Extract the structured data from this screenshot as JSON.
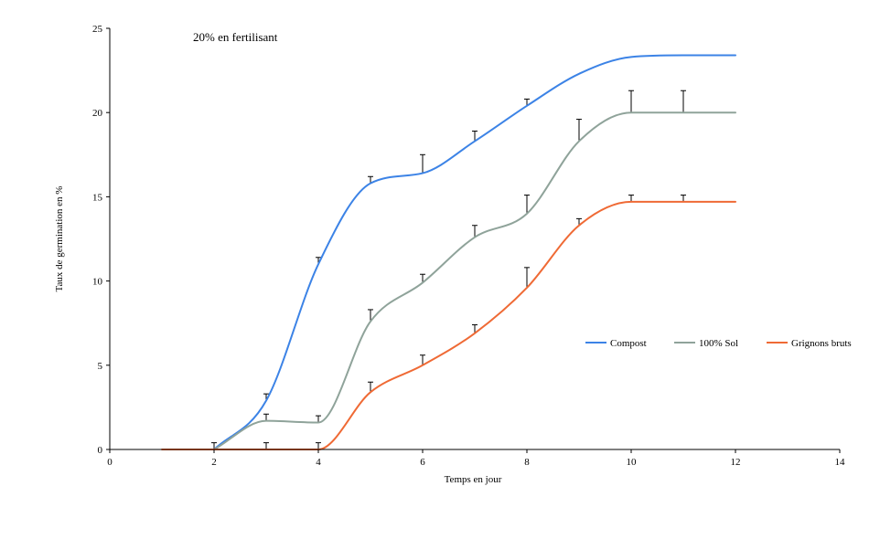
{
  "chart_data": {
    "type": "line",
    "title": "",
    "annotation": "20% en fertilisant",
    "xlabel": "Temps en jour",
    "ylabel": "Taux de germination en %",
    "xlim": [
      0,
      14
    ],
    "ylim": [
      0,
      25
    ],
    "xticks": [
      0,
      2,
      4,
      6,
      8,
      10,
      12,
      14
    ],
    "yticks": [
      0,
      5,
      10,
      15,
      20,
      25
    ],
    "grid": false,
    "legend_position": "right",
    "smooth": true,
    "series": [
      {
        "name": "Compost",
        "color": "#3c83e6",
        "x": [
          2,
          3,
          4,
          5,
          6,
          7,
          8,
          9,
          10,
          11,
          12
        ],
        "values": [
          0,
          2.9,
          11.0,
          15.8,
          16.4,
          18.3,
          20.4,
          22.3,
          23.3,
          23.4,
          23.4
        ],
        "error": [
          0,
          0.4,
          0.4,
          0.4,
          1.1,
          0.6,
          0.4,
          0,
          0,
          0,
          0
        ]
      },
      {
        "name": "100% Sol",
        "color": "#8fa39a",
        "x": [
          2,
          3,
          4,
          5,
          6,
          7,
          8,
          9,
          10,
          11,
          12
        ],
        "values": [
          0,
          1.7,
          1.6,
          7.6,
          9.9,
          12.6,
          14.0,
          18.3,
          20.0,
          20.0,
          20.0
        ],
        "error": [
          0.4,
          0.4,
          0.4,
          0.7,
          0.5,
          0.7,
          1.1,
          1.3,
          1.3,
          1.3,
          0
        ]
      },
      {
        "name": "Grignons bruts",
        "color": "#ef6a35",
        "x": [
          1,
          2,
          3,
          4,
          5,
          6,
          7,
          8,
          9,
          10,
          11,
          12
        ],
        "values": [
          0,
          0,
          0,
          0,
          3.4,
          5.0,
          6.9,
          9.6,
          13.3,
          14.7,
          14.7,
          14.7
        ],
        "error": [
          0,
          0,
          0.4,
          0.4,
          0.6,
          0.6,
          0.5,
          1.2,
          0.4,
          0.4,
          0.4,
          0
        ]
      }
    ]
  }
}
